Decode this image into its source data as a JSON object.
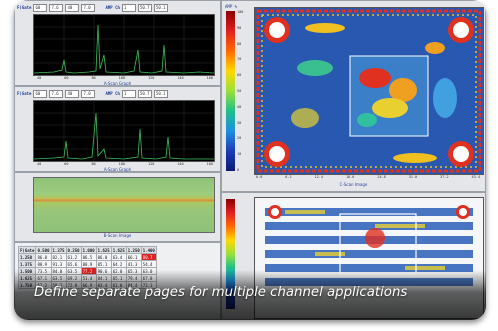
{
  "caption": "Define separate pages for multiple channel applications",
  "ascan": {
    "gate_label": "F(Gate",
    "fields": [
      "60",
      "7.6",
      "40",
      "7.0"
    ],
    "amp_label": "AMP Ch",
    "amp_fields": [
      "1",
      "50.7",
      "50.1"
    ],
    "title": "A-Scan Graph",
    "x_ticks": [
      "40",
      "60",
      "80",
      "100",
      "120",
      "140",
      "160"
    ]
  },
  "cscan": {
    "title": "C-Scan Image",
    "scale_ticks": [
      "100",
      "90",
      "80",
      "70",
      "60",
      "50",
      "40",
      "30",
      "20",
      "10",
      "0"
    ],
    "x_ticks": [
      "0.0",
      "6.2",
      "12.4",
      "18.6",
      "24.8",
      "31.0",
      "37.2",
      "43.4"
    ],
    "scale_label": "AMP %"
  },
  "bscan": {
    "title": "B-Scan Image"
  },
  "table": {
    "header": [
      "F(Gate",
      "0.500",
      "1.375",
      "0.250",
      "1.000",
      "1.625",
      "1.625",
      "1.250",
      "1.400"
    ],
    "rows": [
      [
        "1.250",
        "86.8",
        "82.1",
        "61.2",
        "86.5",
        "86.0",
        "63.4",
        "66.1",
        "80.7"
      ],
      [
        "1.375",
        "88.9",
        "91.3",
        "65.6",
        "80.9",
        "85.1",
        "64.2",
        "41.3",
        "54.4"
      ],
      [
        "1.500",
        "73.5",
        "84.0",
        "63.5",
        "77.2",
        "90.6",
        "62.0",
        "65.3",
        "63.0"
      ],
      [
        "1.625",
        "67.1",
        "63.5",
        "69.2",
        "51.4",
        "84.1",
        "65.1",
        "79.4",
        "67.8"
      ],
      [
        "1.750",
        "52.2",
        "58.2",
        "72.8",
        "66.9",
        "83.4",
        "61.0",
        "84.4",
        "72.1"
      ]
    ],
    "red_cells": [
      [
        0,
        8
      ],
      [
        2,
        4
      ]
    ]
  },
  "colors": {
    "waveform": "#3fbf5a",
    "accent_label": "#1a3d9a",
    "cscan_bg": "#2858b0"
  }
}
